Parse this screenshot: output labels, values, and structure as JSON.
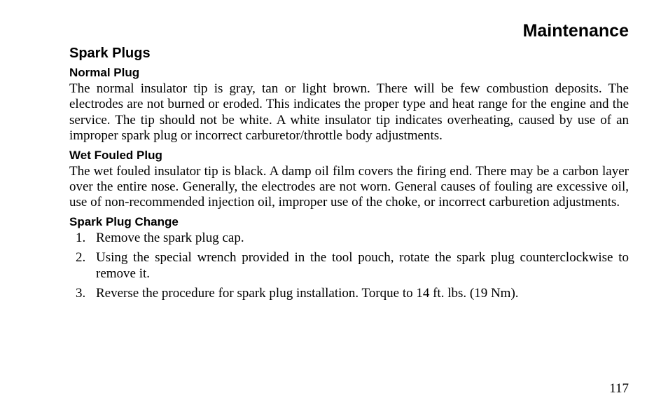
{
  "chapter": {
    "title": "Maintenance"
  },
  "section": {
    "title": "Spark Plugs"
  },
  "sub1": {
    "title": "Normal Plug",
    "body": "The normal insulator tip is gray, tan or light brown. There will be few combustion deposits. The electrodes are not burned or eroded. This indicates the proper type and heat range for the engine and the service. The tip should not be white. A white insulator tip indicates overheating, caused by use of an improper spark plug or incorrect carburetor/throttle body adjustments."
  },
  "sub2": {
    "title": "Wet Fouled Plug",
    "body": "The wet fouled insulator tip is black. A damp oil film covers the firing end. There may be a carbon layer over the entire nose. Generally, the electrodes are not worn. General causes of fouling are excessive oil, use of non-recommended injection oil, improper use of the choke, or incorrect carburetion adjustments."
  },
  "sub3": {
    "title": "Spark Plug Change",
    "steps": {
      "s1": "Remove the spark plug cap.",
      "s2": "Using the special wrench provided in the tool pouch, rotate the spark plug counterclockwise to remove it.",
      "s3": "Reverse the procedure for spark plug installation. Torque to 14 ft. lbs. (19 Nm)."
    }
  },
  "pageNumber": "117"
}
